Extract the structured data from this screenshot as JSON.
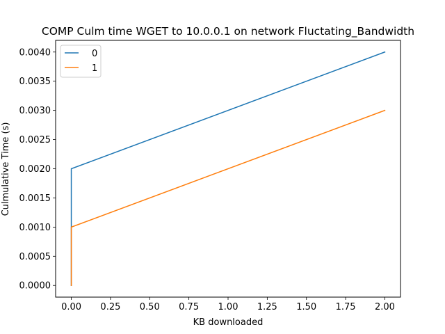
{
  "chart_data": {
    "type": "line",
    "title": "COMP Culm time WGET to 10.0.0.1 on network Fluctating_Bandwidth",
    "xlabel": "KB downloaded",
    "ylabel": "Culmulative Time (s)",
    "xlim": [
      -0.1,
      2.1
    ],
    "ylim": [
      -0.0002,
      0.0042
    ],
    "xticks": [
      0.0,
      0.25,
      0.5,
      0.75,
      1.0,
      1.25,
      1.5,
      1.75,
      2.0
    ],
    "xtick_labels": [
      "0.00",
      "0.25",
      "0.50",
      "0.75",
      "1.00",
      "1.25",
      "1.50",
      "1.75",
      "2.00"
    ],
    "yticks": [
      0.0,
      0.0005,
      0.001,
      0.0015,
      0.002,
      0.0025,
      0.003,
      0.0035,
      0.004
    ],
    "ytick_labels": [
      "0.0000",
      "0.0005",
      "0.0010",
      "0.0015",
      "0.0020",
      "0.0025",
      "0.0030",
      "0.0035",
      "0.0040"
    ],
    "grid": false,
    "legend_position": "top-left",
    "series": [
      {
        "name": "0",
        "color": "#1f77b4",
        "x": [
          0,
          0,
          2
        ],
        "y": [
          0,
          0.002,
          0.004
        ]
      },
      {
        "name": "1",
        "color": "#ff7f0e",
        "x": [
          0,
          0,
          2
        ],
        "y": [
          0,
          0.001,
          0.003
        ]
      }
    ]
  }
}
